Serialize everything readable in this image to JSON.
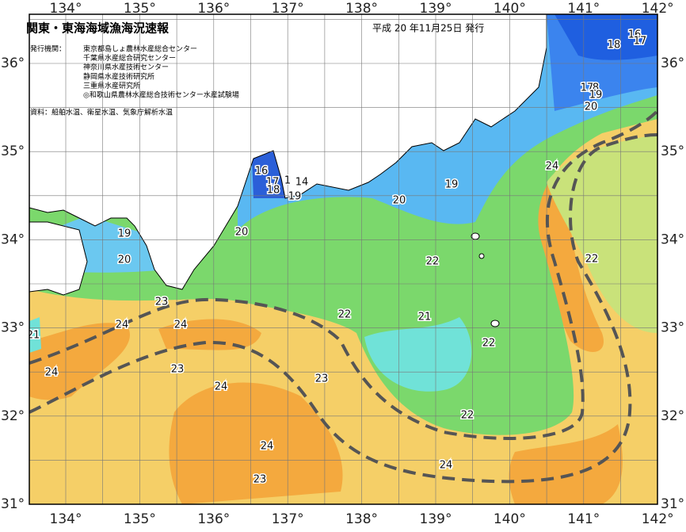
{
  "header": {
    "title": "関東・東海海域漁海況速報",
    "date": "平成 20 年11月25日 発行",
    "issuers_label": "発行機関：",
    "issuers": [
      "東京都島しょ農林水産総合センター",
      "千葉県水産総合研究センター",
      "神奈川県水産技術センター",
      "静岡県水産技術研究所",
      "三重県水産研究所",
      "◎和歌山県農林水産総合技術センター水産試験場"
    ],
    "source": "資料：船舶水温、衛星水温、気象庁解析水温"
  },
  "map": {
    "longitude_labels": [
      "134°",
      "135°",
      "136°",
      "137°",
      "138°",
      "139°",
      "140°",
      "141°",
      "142°"
    ],
    "latitude_labels": [
      "36°",
      "35°",
      "34°",
      "33°",
      "32°",
      "31°"
    ],
    "contour_labels": [
      "16",
      "17",
      "18",
      "17",
      "8",
      "19",
      "20",
      "24",
      "22",
      "16",
      "17",
      "18",
      "1",
      "14",
      "19",
      "20",
      "19",
      "20",
      "19",
      "20",
      "22",
      "23",
      "22",
      "21",
      "24",
      "24",
      "21",
      "22",
      "24",
      "23",
      "23",
      "24",
      "22",
      "24",
      "24",
      "23"
    ]
  }
}
